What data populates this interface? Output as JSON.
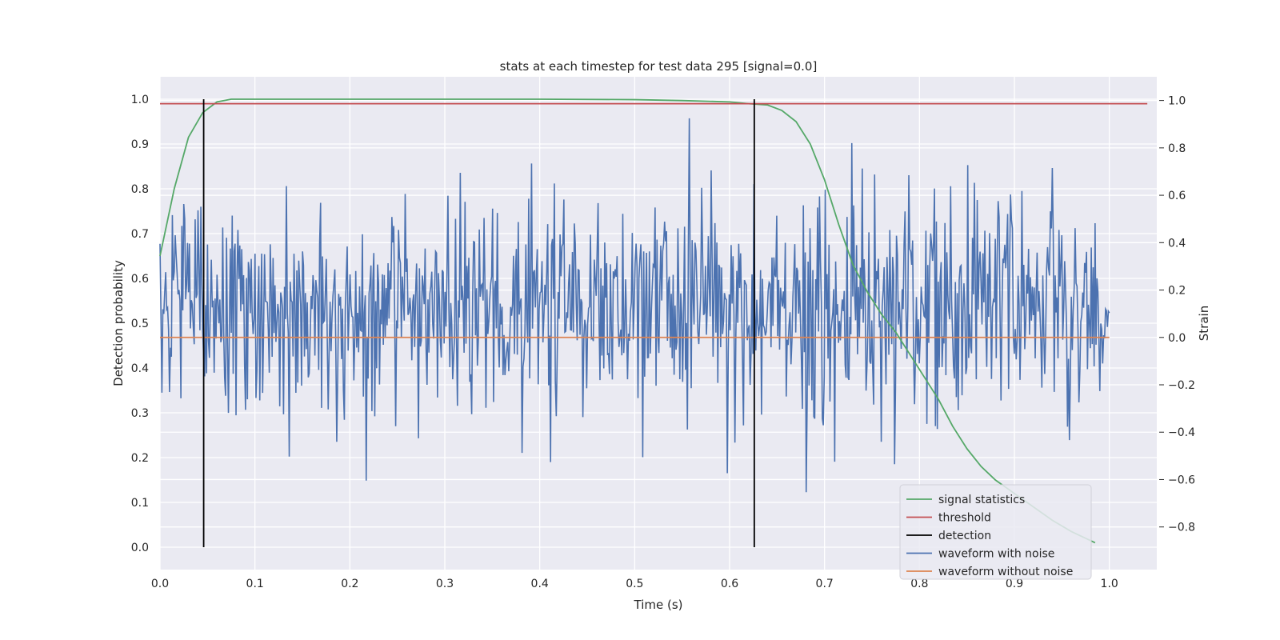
{
  "chart_data": {
    "type": "line",
    "title": "stats at each timestep for test data 295 [signal=0.0]",
    "xlabel": "Time (s)",
    "ylabel_left": "Detection probability",
    "ylabel_right": "Strain",
    "xlim": [
      0.0,
      1.05
    ],
    "ylim_left": [
      -0.05,
      1.05
    ],
    "ylim_right": [
      -0.98,
      1.1
    ],
    "x_ticks": [
      "0.0",
      "0.1",
      "0.2",
      "0.3",
      "0.4",
      "0.5",
      "0.6",
      "0.7",
      "0.8",
      "0.9",
      "1.0"
    ],
    "y_left_ticks": [
      "0.0",
      "0.1",
      "0.2",
      "0.3",
      "0.4",
      "0.5",
      "0.6",
      "0.7",
      "0.8",
      "0.9",
      "1.0"
    ],
    "y_right_ticks": [
      "−0.8",
      "−0.6",
      "−0.4",
      "−0.2",
      "0.0",
      "0.2",
      "0.4",
      "0.6",
      "0.8",
      "1.0"
    ],
    "grid": true,
    "legend_position": "bottom-right",
    "series": [
      {
        "name": "signal statistics",
        "axis": "left",
        "color": "#55a868",
        "x": [
          0.0,
          0.015,
          0.03,
          0.045,
          0.06,
          0.075,
          0.1,
          0.2,
          0.3,
          0.4,
          0.5,
          0.55,
          0.6,
          0.62,
          0.64,
          0.655,
          0.67,
          0.685,
          0.7,
          0.715,
          0.73,
          0.745,
          0.76,
          0.775,
          0.79,
          0.805,
          0.82,
          0.835,
          0.85,
          0.865,
          0.88,
          0.9,
          0.92,
          0.94,
          0.96,
          0.985
        ],
        "y": [
          0.65,
          0.8,
          0.915,
          0.97,
          0.994,
          1.0,
          1.0,
          1.0,
          1.0,
          1.0,
          0.999,
          0.997,
          0.994,
          0.99,
          0.987,
          0.975,
          0.95,
          0.9,
          0.82,
          0.72,
          0.63,
          0.57,
          0.52,
          0.48,
          0.43,
          0.38,
          0.33,
          0.27,
          0.22,
          0.18,
          0.15,
          0.12,
          0.09,
          0.06,
          0.035,
          0.01
        ]
      },
      {
        "name": "threshold",
        "axis": "left",
        "color": "#c44e52",
        "x": [
          0.0,
          1.04
        ],
        "y": [
          0.99,
          0.99
        ]
      },
      {
        "name": "detection",
        "axis": "left",
        "color": "#000000",
        "segments": [
          {
            "x": 0.046,
            "y0": 0.0,
            "y1": 1.0
          },
          {
            "x": 0.626,
            "y0": 0.0,
            "y1": 1.0
          }
        ]
      },
      {
        "name": "waveform with noise",
        "axis": "right",
        "color": "#4c72b0",
        "x_start": 0.0,
        "x_end": 1.0,
        "y": []
      },
      {
        "name": "waveform without noise",
        "axis": "right",
        "color": "#dd8452",
        "x": [
          0.0,
          1.0
        ],
        "y": [
          0.0,
          0.0
        ]
      }
    ]
  }
}
